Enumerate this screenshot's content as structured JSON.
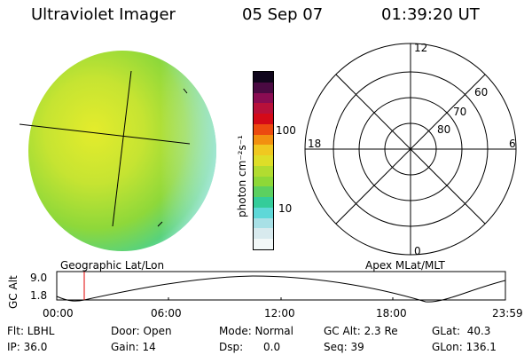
{
  "header": {
    "instrument": "Ultraviolet Imager",
    "date": "05 Sep 07",
    "time": "01:39:20 UT"
  },
  "left_panel": {
    "caption": "Geographic Lat/Lon"
  },
  "colorbar": {
    "unit_label": "photon cm⁻²s⁻¹",
    "ticks": [
      {
        "label": "100",
        "value": 100
      },
      {
        "label": "10",
        "value": 10
      }
    ],
    "colors": [
      "#f2f8f8",
      "#d8eaee",
      "#a8e0e6",
      "#5ed8d8",
      "#34cc9a",
      "#5cd060",
      "#8ed838",
      "#b2dc30",
      "#dede28",
      "#f0c820",
      "#f29010",
      "#ec4a10",
      "#d40a18",
      "#b8103a",
      "#8a0c52",
      "#4a0a42",
      "#10061c"
    ]
  },
  "polar_panel": {
    "caption": "Apex MLat/MLT",
    "mlt_labels": {
      "top": "12",
      "left": "18",
      "right": "6",
      "bottom": "0"
    },
    "lat_labels": [
      "60",
      "70",
      "80"
    ]
  },
  "altitude_plot": {
    "ylabel": "GC Alt",
    "y_ticks": [
      "9.0",
      "1.8"
    ],
    "x_ticks": [
      "00:00",
      "06:00",
      "12:00",
      "18:00",
      "23:59"
    ]
  },
  "info": {
    "flt": "Flt: LBHL",
    "ip": "IP: 36.0",
    "door": "Door: Open",
    "gain": "Gain: 14",
    "mode": "Mode: Normal",
    "dsp": "Dsp:      0.0",
    "gc_alt": "GC Alt: 2.3 Re",
    "seq": "Seq: 39",
    "glat": "GLat:  40.3",
    "glon": "GLon: 136.1"
  }
}
